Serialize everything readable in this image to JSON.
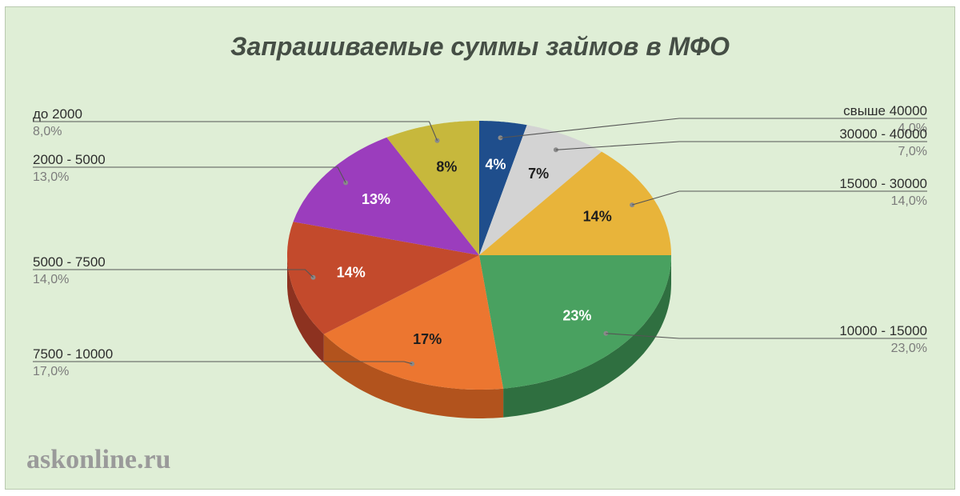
{
  "chart_data": {
    "type": "pie",
    "title": "Запрашиваемые суммы займов в МФО",
    "categories": [
      "свыше 40000",
      "30000 - 40000",
      "15000 - 30000",
      "10000 - 15000",
      "7500 - 10000",
      "5000 - 7500",
      "2000 - 5000",
      "до 2000"
    ],
    "values": [
      4,
      7,
      14,
      23,
      17,
      14,
      13,
      8
    ],
    "value_labels": [
      "4,0%",
      "7,0%",
      "14,0%",
      "23,0%",
      "17,0%",
      "14,0%",
      "13,0%",
      "8,0%"
    ],
    "slice_labels": [
      "4%",
      "7%",
      "14%",
      "23%",
      "17%",
      "14%",
      "13%",
      "8%"
    ],
    "colors": [
      "#1f4e8c",
      "#d3d3d3",
      "#e8b43a",
      "#49a160",
      "#ec7630",
      "#c34a2c",
      "#9b3dbd",
      "#c7b83c"
    ],
    "side_colors": [
      "#163a68",
      "#a6a6a6",
      "#b68a2a",
      "#2f6f40",
      "#b2531d",
      "#8d3220",
      "#6e2a88",
      "#958a2a"
    ],
    "slice_label_colors": [
      "#ffffff",
      "#1e1e1e",
      "#1e1e1e",
      "#ffffff",
      "#1e1e1e",
      "#ffffff",
      "#ffffff",
      "#1e1e1e"
    ],
    "start": "12 o'clock",
    "direction": "clockwise",
    "style": "3d",
    "legend": "callout labels on both sides"
  },
  "watermark": "askonline.ru"
}
